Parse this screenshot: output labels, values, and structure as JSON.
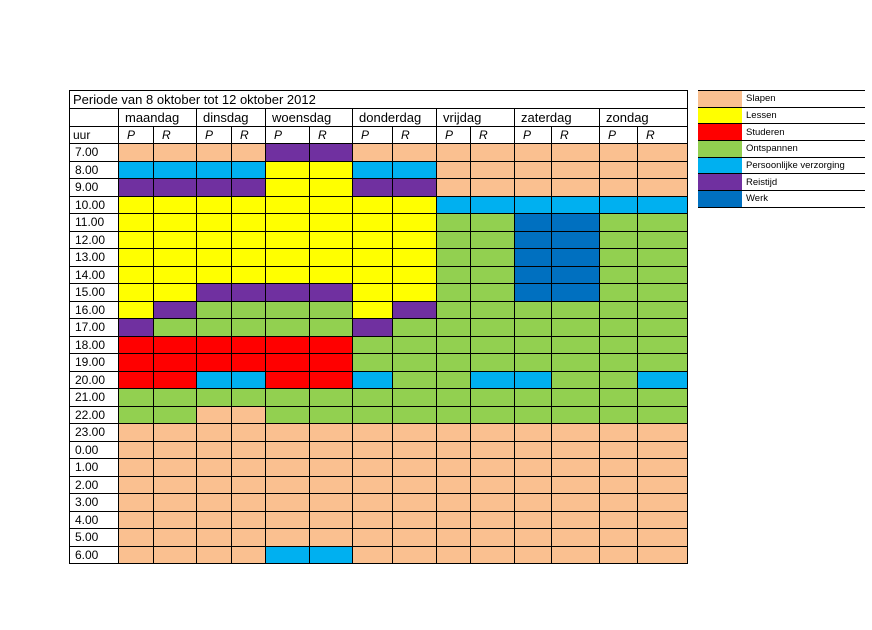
{
  "title": "Periode van 8 oktober tot 12 oktober 2012",
  "hour_header": "uur",
  "days": [
    {
      "name": "maandag",
      "p": "P",
      "r": "R"
    },
    {
      "name": "dinsdag",
      "p": "P",
      "r": "R"
    },
    {
      "name": "woensdag",
      "p": "P",
      "r": "R"
    },
    {
      "name": "donderdag",
      "p": "P",
      "r": "R"
    },
    {
      "name": "vrijdag",
      "p": "P",
      "r": "R"
    },
    {
      "name": "zaterdag",
      "p": "P",
      "r": "R"
    },
    {
      "name": "zondag",
      "p": "P",
      "r": "R"
    }
  ],
  "activities": {
    "S": {
      "label": "Slapen",
      "color": "#FAC090"
    },
    "L": {
      "label": "Lessen",
      "color": "#FFFF00"
    },
    "T": {
      "label": "Studeren",
      "color": "#FF0000"
    },
    "O": {
      "label": "Ontspannen",
      "color": "#92D050"
    },
    "V": {
      "label": "Persoonlijke verzorging",
      "color": "#00B0F0"
    },
    "I": {
      "label": "Reistijd",
      "color": "#7030A0"
    },
    "W": {
      "label": "Werk",
      "color": "#0070C0"
    }
  },
  "legend_order": [
    "S",
    "L",
    "T",
    "O",
    "V",
    "I",
    "W"
  ],
  "rows": [
    {
      "hour": "7.00",
      "cells": [
        "S",
        "S",
        "S",
        "S",
        "I",
        "I",
        "S",
        "S",
        "S",
        "S",
        "S",
        "S",
        "S",
        "S"
      ]
    },
    {
      "hour": "8.00",
      "cells": [
        "V",
        "V",
        "V",
        "V",
        "L",
        "L",
        "V",
        "V",
        "S",
        "S",
        "S",
        "S",
        "S",
        "S"
      ]
    },
    {
      "hour": "9.00",
      "cells": [
        "I",
        "I",
        "I",
        "I",
        "L",
        "L",
        "I",
        "I",
        "S",
        "S",
        "S",
        "S",
        "S",
        "S"
      ]
    },
    {
      "hour": "10.00",
      "cells": [
        "L",
        "L",
        "L",
        "L",
        "L",
        "L",
        "L",
        "L",
        "V",
        "V",
        "V",
        "V",
        "V",
        "V"
      ]
    },
    {
      "hour": "11.00",
      "cells": [
        "L",
        "L",
        "L",
        "L",
        "L",
        "L",
        "L",
        "L",
        "O",
        "O",
        "W",
        "W",
        "O",
        "O"
      ]
    },
    {
      "hour": "12.00",
      "cells": [
        "L",
        "L",
        "L",
        "L",
        "L",
        "L",
        "L",
        "L",
        "O",
        "O",
        "W",
        "W",
        "O",
        "O"
      ]
    },
    {
      "hour": "13.00",
      "cells": [
        "L",
        "L",
        "L",
        "L",
        "L",
        "L",
        "L",
        "L",
        "O",
        "O",
        "W",
        "W",
        "O",
        "O"
      ]
    },
    {
      "hour": "14.00",
      "cells": [
        "L",
        "L",
        "L",
        "L",
        "L",
        "L",
        "L",
        "L",
        "O",
        "O",
        "W",
        "W",
        "O",
        "O"
      ]
    },
    {
      "hour": "15.00",
      "cells": [
        "L",
        "L",
        "I",
        "I",
        "I",
        "I",
        "L",
        "L",
        "O",
        "O",
        "W",
        "W",
        "O",
        "O"
      ]
    },
    {
      "hour": "16.00",
      "cells": [
        "L",
        "I",
        "O",
        "O",
        "O",
        "O",
        "L",
        "I",
        "O",
        "O",
        "O",
        "O",
        "O",
        "O"
      ]
    },
    {
      "hour": "17.00",
      "cells": [
        "I",
        "O",
        "O",
        "O",
        "O",
        "O",
        "I",
        "O",
        "O",
        "O",
        "O",
        "O",
        "O",
        "O"
      ]
    },
    {
      "hour": "18.00",
      "cells": [
        "T",
        "T",
        "T",
        "T",
        "T",
        "T",
        "O",
        "O",
        "O",
        "O",
        "O",
        "O",
        "O",
        "O"
      ]
    },
    {
      "hour": "19.00",
      "cells": [
        "T",
        "T",
        "T",
        "T",
        "T",
        "T",
        "O",
        "O",
        "O",
        "O",
        "O",
        "O",
        "O",
        "O"
      ]
    },
    {
      "hour": "20.00",
      "cells": [
        "T",
        "T",
        "V",
        "V",
        "T",
        "T",
        "V",
        "O",
        "O",
        "V",
        "V",
        "O",
        "O",
        "V"
      ]
    },
    {
      "hour": "21.00",
      "cells": [
        "O",
        "O",
        "O",
        "O",
        "O",
        "O",
        "O",
        "O",
        "O",
        "O",
        "O",
        "O",
        "O",
        "O"
      ]
    },
    {
      "hour": "22.00",
      "cells": [
        "O",
        "O",
        "S",
        "S",
        "O",
        "O",
        "O",
        "O",
        "O",
        "O",
        "O",
        "O",
        "O",
        "O"
      ]
    },
    {
      "hour": "23.00",
      "cells": [
        "S",
        "S",
        "S",
        "S",
        "S",
        "S",
        "S",
        "S",
        "S",
        "S",
        "S",
        "S",
        "S",
        "S"
      ]
    },
    {
      "hour": "0.00",
      "cells": [
        "S",
        "S",
        "S",
        "S",
        "S",
        "S",
        "S",
        "S",
        "S",
        "S",
        "S",
        "S",
        "S",
        "S"
      ]
    },
    {
      "hour": "1.00",
      "cells": [
        "S",
        "S",
        "S",
        "S",
        "S",
        "S",
        "S",
        "S",
        "S",
        "S",
        "S",
        "S",
        "S",
        "S"
      ]
    },
    {
      "hour": "2.00",
      "cells": [
        "S",
        "S",
        "S",
        "S",
        "S",
        "S",
        "S",
        "S",
        "S",
        "S",
        "S",
        "S",
        "S",
        "S"
      ]
    },
    {
      "hour": "3.00",
      "cells": [
        "S",
        "S",
        "S",
        "S",
        "S",
        "S",
        "S",
        "S",
        "S",
        "S",
        "S",
        "S",
        "S",
        "S"
      ]
    },
    {
      "hour": "4.00",
      "cells": [
        "S",
        "S",
        "S",
        "S",
        "S",
        "S",
        "S",
        "S",
        "S",
        "S",
        "S",
        "S",
        "S",
        "S"
      ]
    },
    {
      "hour": "5.00",
      "cells": [
        "S",
        "S",
        "S",
        "S",
        "S",
        "S",
        "S",
        "S",
        "S",
        "S",
        "S",
        "S",
        "S",
        "S"
      ]
    },
    {
      "hour": "6.00",
      "cells": [
        "S",
        "S",
        "S",
        "S",
        "V",
        "V",
        "S",
        "S",
        "S",
        "S",
        "S",
        "S",
        "S",
        "S"
      ]
    }
  ]
}
